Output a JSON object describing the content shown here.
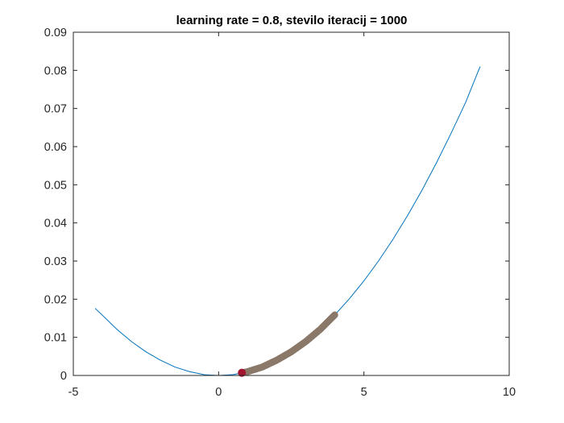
{
  "chart_data": {
    "type": "line",
    "title": "learning rate = 0.8, stevilo iteracij = 1000",
    "xlabel": "",
    "ylabel": "",
    "xlim": [
      -5,
      10
    ],
    "ylim": [
      0,
      0.09
    ],
    "xticks": [
      -5,
      0,
      5,
      10
    ],
    "yticks": [
      0,
      0.01,
      0.02,
      0.03,
      0.04,
      0.05,
      0.06,
      0.07,
      0.08,
      0.09
    ],
    "xtick_labels": [
      "-5",
      "0",
      "5",
      "10"
    ],
    "ytick_labels": [
      "0",
      "0.01",
      "0.02",
      "0.03",
      "0.04",
      "0.05",
      "0.06",
      "0.07",
      "0.08",
      "0.09"
    ],
    "grid": false,
    "box": true,
    "series": [
      {
        "type": "line",
        "color": "#0072bd",
        "x": [
          -4.25,
          -4.0,
          -3.5,
          -3.0,
          -2.5,
          -2.0,
          -1.5,
          -1.0,
          -0.5,
          0.0,
          0.5,
          1.0,
          1.5,
          2.0,
          2.5,
          3.0,
          3.5,
          4.0,
          4.5,
          5.0,
          5.5,
          6.0,
          6.5,
          7.0,
          7.5,
          8.0,
          8.5,
          9.0
        ],
        "y": [
          0.0176,
          0.0158,
          0.0121,
          0.0089,
          0.0062,
          0.004,
          0.0022,
          0.001,
          0.0002,
          0.0,
          0.0002,
          0.001,
          0.0022,
          0.004,
          0.0062,
          0.0089,
          0.0121,
          0.0159,
          0.0201,
          0.0248,
          0.03,
          0.0357,
          0.0419,
          0.0486,
          0.0558,
          0.0635,
          0.0716,
          0.081
        ]
      },
      {
        "type": "scatter",
        "marker": "circle",
        "color": "#8c7a6b",
        "x_start": 4.0,
        "x_end": 0.8,
        "count": 1000
      },
      {
        "type": "scatter",
        "marker": "filled-circle",
        "color": "#a2142f",
        "x": [
          0.8
        ],
        "y": [
          0.0007
        ]
      }
    ]
  }
}
